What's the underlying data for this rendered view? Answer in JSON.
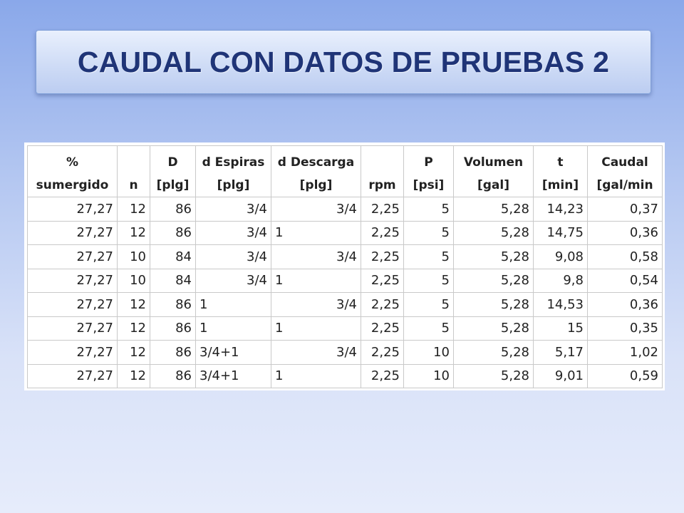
{
  "title": "CAUDAL CON DATOS DE PRUEBAS 2",
  "table": {
    "headers": [
      {
        "line1": "%",
        "line2": "sumergido"
      },
      {
        "line1": "",
        "line2": "n"
      },
      {
        "line1": "D",
        "line2": "[plg]"
      },
      {
        "line1": "d Espiras",
        "line2": "[plg]"
      },
      {
        "line1": "d Descarga",
        "line2": "[plg]"
      },
      {
        "line1": "",
        "line2": "rpm"
      },
      {
        "line1": "P",
        "line2": "[psi]"
      },
      {
        "line1": "Volumen",
        "line2": "[gal]"
      },
      {
        "line1": "t",
        "line2": "[min]"
      },
      {
        "line1": "Caudal",
        "line2": "[gal/min"
      }
    ],
    "rows": [
      [
        "27,27",
        "12",
        "86",
        "3/4",
        "3/4",
        "2,25",
        "5",
        "5,28",
        "14,23",
        "0,37"
      ],
      [
        "27,27",
        "12",
        "86",
        "3/4",
        "1",
        "2,25",
        "5",
        "5,28",
        "14,75",
        "0,36"
      ],
      [
        "27,27",
        "10",
        "84",
        "3/4",
        "3/4",
        "2,25",
        "5",
        "5,28",
        "9,08",
        "0,58"
      ],
      [
        "27,27",
        "10",
        "84",
        "3/4",
        "1",
        "2,25",
        "5",
        "5,28",
        "9,8",
        "0,54"
      ],
      [
        "27,27",
        "12",
        "86",
        "1",
        "3/4",
        "2,25",
        "5",
        "5,28",
        "14,53",
        "0,36"
      ],
      [
        "27,27",
        "12",
        "86",
        "1",
        "1",
        "2,25",
        "5",
        "5,28",
        "15",
        "0,35"
      ],
      [
        "27,27",
        "12",
        "86",
        "3/4+1",
        "3/4",
        "2,25",
        "10",
        "5,28",
        "5,17",
        "1,02"
      ],
      [
        "27,27",
        "12",
        "86",
        "3/4+1",
        "1",
        "2,25",
        "10",
        "5,28",
        "9,01",
        "0,59"
      ]
    ]
  }
}
